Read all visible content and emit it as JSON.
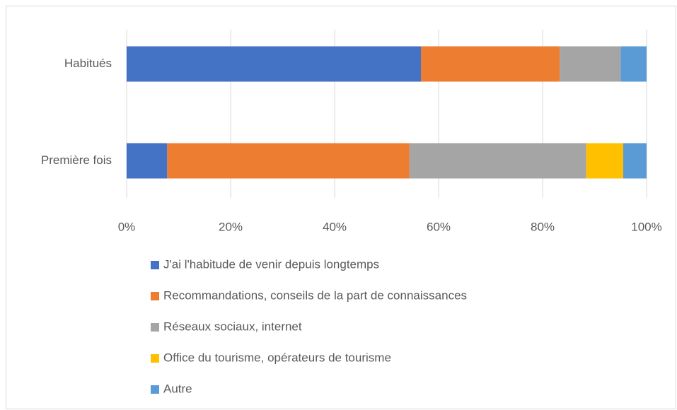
{
  "chart_data": {
    "type": "bar",
    "orientation": "horizontal",
    "stacked": true,
    "categories": [
      "Habitués",
      "Première fois"
    ],
    "series": [
      {
        "name": "J'ai l'habitude de venir depuis longtemps",
        "color": "#4472c4",
        "values": [
          56.6,
          7.8
        ]
      },
      {
        "name": "Recommandations, conseils de la part de connaissances",
        "color": "#ed7d31",
        "values": [
          26.7,
          46.6
        ]
      },
      {
        "name": "Réseaux sociaux, internet",
        "color": "#a5a5a5",
        "values": [
          11.7,
          34.0
        ]
      },
      {
        "name": "Office du tourisme, opérateurs de tourisme",
        "color": "#ffc000",
        "values": [
          0,
          7.1
        ]
      },
      {
        "name": "Autre",
        "color": "#5b9bd5",
        "values": [
          5.0,
          4.5
        ]
      }
    ],
    "xlim": [
      0,
      100
    ],
    "xticks": [
      {
        "value": 0,
        "label": "0%"
      },
      {
        "value": 20,
        "label": "20%"
      },
      {
        "value": 40,
        "label": "40%"
      },
      {
        "value": 60,
        "label": "60%"
      },
      {
        "value": 80,
        "label": "80%"
      },
      {
        "value": 100,
        "label": "100%"
      }
    ],
    "grid": true,
    "legend": "bottom"
  }
}
